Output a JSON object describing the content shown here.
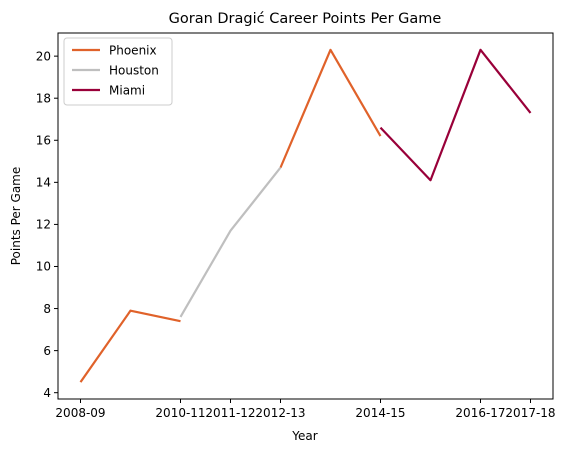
{
  "chart_data": {
    "type": "line",
    "title": "Goran Dragić Career Points Per Game",
    "xlabel": "Year",
    "ylabel": "Points Per Game",
    "x_tick_labels": [
      "2008-09",
      "2010-11",
      "2011-12",
      "2012-13",
      "2014-15",
      "2016-17",
      "2017-18"
    ],
    "ylim": [
      3.7,
      21.1
    ],
    "y_ticks": [
      4,
      6,
      8,
      10,
      12,
      14,
      16,
      18,
      20
    ],
    "grid": false,
    "legend_position": "top-left",
    "series": [
      {
        "name": "Phoenix",
        "color": "#e0622a",
        "points": [
          {
            "x": "2008-09",
            "y": 4.5
          },
          {
            "x": "2009-10",
            "y": 7.9
          },
          {
            "x": "2010-11",
            "y": 7.4
          }
        ]
      },
      {
        "name": "Phoenix",
        "color": "#e0622a",
        "show_in_legend": false,
        "points": [
          {
            "x": "2012-13",
            "y": 14.7
          },
          {
            "x": "2013-14",
            "y": 20.3
          },
          {
            "x": "2014-15",
            "y": 16.2
          }
        ]
      },
      {
        "name": "Houston",
        "color": "#bfbfbf",
        "points": [
          {
            "x": "2010-11",
            "y": 7.6
          },
          {
            "x": "2011-12",
            "y": 11.7
          },
          {
            "x": "2012-13",
            "y": 14.7
          }
        ]
      },
      {
        "name": "Miami",
        "color": "#990039",
        "points": [
          {
            "x": "2014-15",
            "y": 16.6
          },
          {
            "x": "2015-16",
            "y": 14.1
          },
          {
            "x": "2016-17",
            "y": 20.3
          },
          {
            "x": "2017-18",
            "y": 17.3
          }
        ]
      }
    ]
  }
}
